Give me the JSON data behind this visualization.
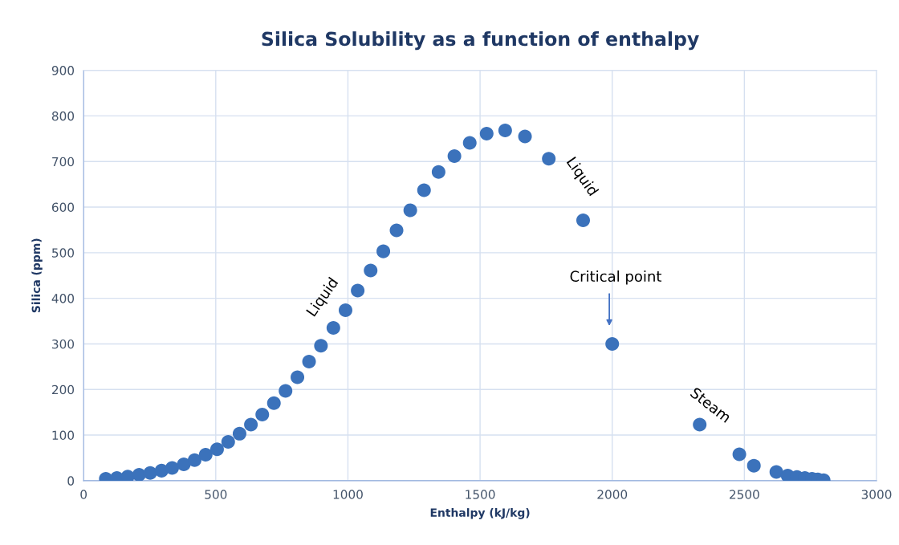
{
  "chart_data": {
    "type": "scatter",
    "title": "Silica Solubility as a function of enthalpy",
    "xlabel": "Enthalpy (kJ/kg)",
    "ylabel": "Silica (ppm)",
    "x": [
      84,
      126,
      167,
      210,
      252,
      295,
      335,
      379,
      420,
      462,
      505,
      547,
      590,
      633,
      676,
      720,
      764,
      809,
      853,
      898,
      945,
      991,
      1037,
      1086,
      1134,
      1184,
      1236,
      1288,
      1343,
      1403,
      1461,
      1525,
      1595,
      1670,
      1760,
      1890,
      2000,
      2331,
      2481,
      2536,
      2621,
      2664,
      2699,
      2729,
      2756,
      2778,
      2800
    ],
    "series": [
      {
        "color": "#3b72bb",
        "values": [
          4,
          6,
          9,
          13,
          17,
          22,
          28,
          36,
          45,
          57,
          69,
          85,
          103,
          123,
          145,
          170,
          197,
          227,
          261,
          296,
          335,
          374,
          417,
          461,
          503,
          549,
          593,
          637,
          677,
          712,
          741,
          761,
          768,
          755,
          706,
          571,
          300,
          123,
          58,
          33,
          19,
          11,
          8,
          6,
          4,
          3,
          1
        ]
      }
    ],
    "xlim": [
      0,
      3000
    ],
    "ylim": [
      0,
      900
    ],
    "xticks": [
      0,
      500,
      1000,
      1500,
      2000,
      2500,
      3000
    ],
    "yticks": [
      0,
      100,
      200,
      300,
      400,
      500,
      600,
      700,
      800,
      900
    ],
    "grid": true,
    "marker": "circle",
    "legend": false,
    "annotations": [
      "Liquid",
      "Liquid",
      "Critical point",
      "Steam"
    ]
  }
}
